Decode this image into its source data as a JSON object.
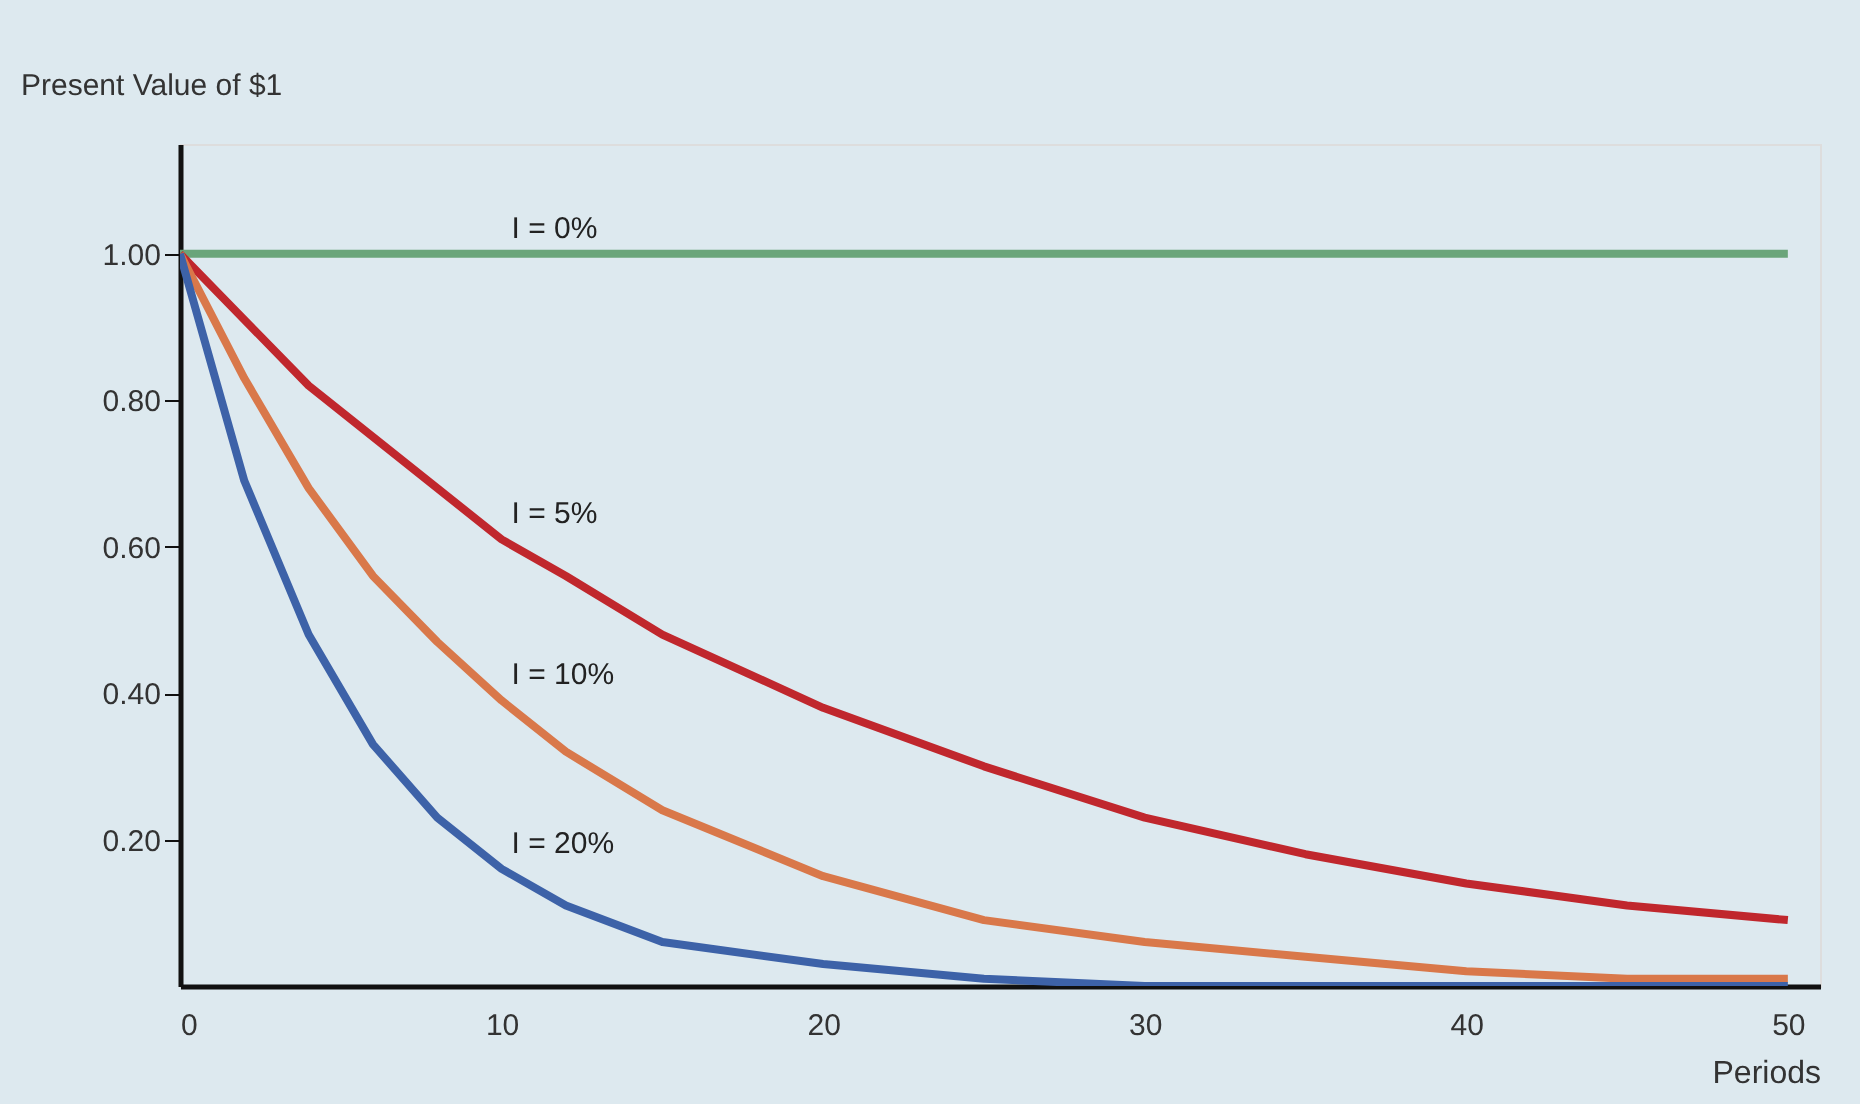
{
  "chart_data": {
    "type": "line",
    "xlabel": "Periods",
    "ylabel": "Present Value of $1",
    "x": [
      0,
      2,
      4,
      6,
      8,
      10,
      12,
      15,
      20,
      25,
      30,
      35,
      40,
      45,
      50
    ],
    "series": [
      {
        "name": "I = 0%",
        "color": "#6aa57a",
        "values": [
          1,
          1,
          1,
          1,
          1,
          1,
          1,
          1,
          1,
          1,
          1,
          1,
          1,
          1,
          1
        ]
      },
      {
        "name": "I = 5%",
        "color": "#c0272d",
        "values": [
          1,
          0.91,
          0.82,
          0.75,
          0.68,
          0.61,
          0.56,
          0.48,
          0.38,
          0.3,
          0.23,
          0.18,
          0.14,
          0.11,
          0.09
        ]
      },
      {
        "name": "I = 10%",
        "color": "#d9784a",
        "values": [
          1,
          0.83,
          0.68,
          0.56,
          0.47,
          0.39,
          0.32,
          0.24,
          0.15,
          0.09,
          0.06,
          0.04,
          0.02,
          0.01,
          0.01
        ]
      },
      {
        "name": "I = 20%",
        "color": "#3d62a8",
        "values": [
          1,
          0.69,
          0.48,
          0.33,
          0.23,
          0.16,
          0.11,
          0.06,
          0.03,
          0.01,
          0,
          0,
          0,
          0,
          0
        ]
      }
    ],
    "xlim": [
      0,
      51
    ],
    "xticks": [
      0,
      10,
      20,
      30,
      40,
      50
    ],
    "ylim": [
      0,
      1.15
    ],
    "yticks": [
      {
        "value": 0.2,
        "label": "0.20"
      },
      {
        "value": 0.4,
        "label": "0.40"
      },
      {
        "value": 0.6,
        "label": "0.60"
      },
      {
        "value": 0.8,
        "label": "0.80"
      },
      {
        "value": 1.0,
        "label": "1.00"
      }
    ],
    "grid": false,
    "legend": false,
    "marker": "none",
    "line_style": "solid"
  }
}
